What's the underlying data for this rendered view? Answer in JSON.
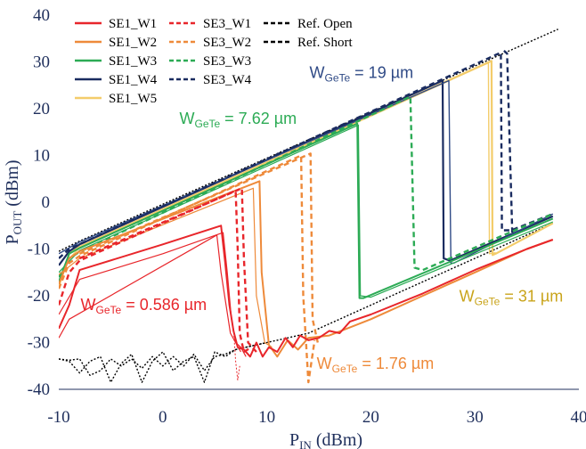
{
  "chart_data": {
    "type": "line",
    "xlabel": {
      "main": "P",
      "sub": "IN",
      "unit": " (dBm)"
    },
    "ylabel": {
      "main": "P",
      "sub": "OUT",
      "unit": " (dBm)"
    },
    "xlim": [
      -10,
      40
    ],
    "ylim": [
      -40,
      40
    ],
    "xticks": [
      -10,
      0,
      10,
      20,
      30,
      40
    ],
    "yticks": [
      -40,
      -30,
      -20,
      -10,
      0,
      10,
      20,
      30,
      40
    ],
    "grid": false,
    "legend_position": "top-left",
    "colors": {
      "W1": "#e8262b",
      "W2": "#ee8a3a",
      "W3": "#2cab55",
      "W4": "#1a2c60",
      "W5": "#f3cc6a",
      "ref": "#000000",
      "axis": "#1f2f5c"
    },
    "legend": [
      {
        "label": "SE1_W1",
        "color": "#e8262b",
        "dash": false
      },
      {
        "label": "SE1_W2",
        "color": "#ee8a3a",
        "dash": false
      },
      {
        "label": "SE1_W3",
        "color": "#2cab55",
        "dash": false
      },
      {
        "label": "SE1_W4",
        "color": "#1a2c60",
        "dash": false
      },
      {
        "label": "SE1_W5",
        "color": "#f3cc6a",
        "dash": false
      },
      {
        "label": "SE3_W1",
        "color": "#e8262b",
        "dash": true
      },
      {
        "label": "SE3_W2",
        "color": "#ee8a3a",
        "dash": true
      },
      {
        "label": "SE3_W3",
        "color": "#2cab55",
        "dash": true
      },
      {
        "label": "SE3_W4",
        "color": "#1a2c60",
        "dash": true
      },
      {
        "label": "Ref. Open",
        "color": "#000000",
        "dash": true
      },
      {
        "label": "Ref. Short",
        "color": "#000000",
        "dash": true
      }
    ],
    "annotations": [
      {
        "main": "W",
        "sub": "GeTe",
        "text": " = 0.586 µm",
        "color": "#e8262b",
        "at": [
          -7.9,
          -23
        ]
      },
      {
        "main": "W",
        "sub": "GeTe",
        "text": " = 1.76 µm",
        "color": "#ee8a3a",
        "at": [
          14.8,
          -35.6
        ]
      },
      {
        "main": "W",
        "sub": "GeTe",
        "text": " = 7.62 µm",
        "color": "#2cab55",
        "at": [
          1.6,
          16.8
        ]
      },
      {
        "main": "W",
        "sub": "GeTe",
        "text": " = 19 µm",
        "color": "#2f4a86",
        "at": [
          14.1,
          26.6
        ]
      },
      {
        "main": "W",
        "sub": "GeTe",
        "text": " = 31 µm",
        "color": "#c9a41b",
        "at": [
          28.5,
          -21.2
        ]
      }
    ],
    "series": [
      {
        "name": "Ref. Open",
        "color": "#000000",
        "dash": "2,2",
        "width": 1.4,
        "x": [
          -10,
          -9,
          -8,
          -7,
          -6,
          -5,
          -4,
          -3,
          -2,
          -1,
          0,
          1,
          2,
          3,
          4,
          5,
          6,
          7,
          8,
          9,
          10,
          11,
          12,
          13,
          14,
          15,
          16,
          17,
          18,
          19,
          20,
          22,
          25,
          28,
          31,
          34,
          37.5
        ],
        "y": [
          -33.5,
          -34,
          -36.5,
          -34,
          -33,
          -38.5,
          -34.5,
          -32.5,
          -38.5,
          -34,
          -32,
          -36,
          -34,
          -33,
          -38.5,
          -32,
          -33,
          -31.5,
          -31,
          -30.5,
          -30,
          -29.5,
          -29,
          -28.5,
          -28,
          -27,
          -26,
          -25,
          -24,
          -23,
          -22,
          -20,
          -17,
          -14,
          -11,
          -8,
          -4.5
        ]
      },
      {
        "name": "Ref. Short",
        "color": "#000000",
        "dash": "2,2",
        "width": 1.4,
        "x": [
          -10,
          -9,
          -8,
          -7,
          -6,
          -5,
          -4,
          -3,
          -2,
          -1,
          0,
          1,
          2,
          3,
          4,
          5,
          6,
          7,
          8,
          9,
          10
        ],
        "y": [
          -33.5,
          -33.8,
          -33.5,
          -37,
          -36,
          -33.5,
          -35,
          -33.5,
          -35.5,
          -33,
          -35,
          -33,
          -35,
          -32.5,
          -36,
          -33,
          -32.5,
          -31.5,
          -31,
          -30.5,
          -30
        ]
      },
      {
        "name": "Ref. Open upper",
        "color": "#000000",
        "dash": "2,2",
        "width": 1.4,
        "x": [
          -10,
          -8,
          38
        ],
        "y": [
          -10.5,
          -8.3,
          37
        ]
      },
      {
        "name": "SE1_W5",
        "color": "#f3cc6a",
        "dash": "",
        "width": 2.2,
        "x": [
          -10,
          -9,
          -8,
          31.6,
          31.7,
          32,
          37.5
        ],
        "y": [
          -18,
          -11,
          -9.5,
          30.2,
          -11.3,
          -11,
          -4.5
        ]
      },
      {
        "name": "SE1_W5 b",
        "color": "#f3cc6a",
        "dash": "",
        "width": 1.4,
        "x": [
          -10,
          -9,
          -8,
          31.3,
          31.4,
          32
        ],
        "y": [
          -17,
          -12,
          -9.8,
          29.8,
          -11,
          -10.8
        ]
      },
      {
        "name": "SE1_W4",
        "color": "#1a2c60",
        "dash": "",
        "width": 2.2,
        "x": [
          -10,
          -9,
          -8,
          26.9,
          27.0,
          27.6,
          37.5
        ],
        "y": [
          -13.5,
          -10.5,
          -9,
          26,
          -12,
          -12.5,
          -3
        ]
      },
      {
        "name": "SE1_W4 b",
        "color": "#2f4a86",
        "dash": "",
        "width": 1.4,
        "x": [
          -10,
          -8,
          27.5,
          27.7,
          28,
          37.5
        ],
        "y": [
          -11,
          -8.5,
          26,
          -13,
          -13,
          -2.5
        ]
      },
      {
        "name": "SE3_W4",
        "color": "#1a2c60",
        "dash": "6,4",
        "width": 2.4,
        "x": [
          -10,
          -9,
          32.5,
          32.6,
          33.5,
          37.5
        ],
        "y": [
          -12,
          -10,
          32,
          -6,
          -6,
          -2.5
        ]
      },
      {
        "name": "SE3_W4 b",
        "color": "#1a2c60",
        "dash": "6,4",
        "width": 2.4,
        "x": [
          32.8,
          33.1,
          33.6
        ],
        "y": [
          32.4,
          31.8,
          -6.5
        ]
      },
      {
        "name": "SE1_W3",
        "color": "#2cab55",
        "dash": "",
        "width": 2.0,
        "x": [
          -10,
          -9,
          -8,
          18.7,
          18.9,
          19.3,
          37.5
        ],
        "y": [
          -17,
          -11,
          -9.8,
          16.8,
          -20.5,
          -20.5,
          -3.5
        ]
      },
      {
        "name": "SE1_W3 b",
        "color": "#2cab55",
        "dash": "",
        "width": 1.2,
        "x": [
          -10,
          -8,
          18.8,
          19.0,
          20,
          37.5
        ],
        "y": [
          -15,
          -10.3,
          16.5,
          -20,
          -20.3,
          -4.2
        ]
      },
      {
        "name": "SE3_W3",
        "color": "#2cab55",
        "dash": "6,4",
        "width": 2.4,
        "x": [
          -10,
          -9,
          -8,
          23.8,
          24.2,
          25,
          37.5
        ],
        "y": [
          -16,
          -12,
          -10.6,
          22.6,
          -14,
          -14.5,
          -2.5
        ]
      },
      {
        "name": "SE1_W2",
        "color": "#ee8a3a",
        "dash": "",
        "width": 2.0,
        "x": [
          -10,
          -9,
          -8,
          9.3,
          9.5,
          10.2,
          11,
          12,
          13,
          14,
          16,
          20,
          25,
          30,
          35,
          37.5
        ],
        "y": [
          -17.5,
          -12,
          -10.5,
          4.5,
          -15,
          -30.5,
          -33,
          -29.5,
          -31.5,
          -29,
          -28.5,
          -25,
          -20,
          -15,
          -10,
          -8
        ]
      },
      {
        "name": "SE1_W2 b",
        "color": "#ee8a3a",
        "dash": "",
        "width": 1.2,
        "x": [
          -10,
          -8,
          8.7,
          9.0,
          9.8,
          10.5
        ],
        "y": [
          -15.5,
          -12,
          3,
          -20,
          -30,
          -31
        ]
      },
      {
        "name": "SE3_W2",
        "color": "#ee8a3a",
        "dash": "6,4",
        "width": 2.4,
        "x": [
          -10,
          -9,
          -8,
          13.3,
          13.5,
          14.0,
          14.6
        ],
        "y": [
          -18.5,
          -13,
          -11.5,
          10,
          -20,
          -38.5,
          -29.5
        ]
      },
      {
        "name": "SE3_W2 b",
        "color": "#ee8a3a",
        "dash": "6,4",
        "width": 2.4,
        "x": [
          -8,
          14.2,
          14.4,
          14.9
        ],
        "y": [
          -11,
          10.4,
          -25,
          -30
        ]
      },
      {
        "name": "SE1_W1",
        "color": "#e8262b",
        "dash": "",
        "width": 2.0,
        "x": [
          -10,
          -9,
          -8,
          0,
          5.6,
          6.0,
          6.4,
          6.8,
          7.2,
          7.8,
          8.4,
          9,
          9.6,
          10.2,
          11,
          11.8,
          12.5,
          13.2,
          14,
          15,
          16,
          17,
          18,
          20,
          25,
          30,
          35,
          37.5
        ],
        "y": [
          -27,
          -22,
          -14.5,
          -9,
          -5,
          -13,
          -22,
          -27.5,
          -31,
          -31.5,
          -33,
          -30,
          -33,
          -31,
          -32,
          -29,
          -31,
          -28.5,
          -29.5,
          -29,
          -27.5,
          -28,
          -25.5,
          -24,
          -19.5,
          -14.5,
          -10,
          -8
        ]
      },
      {
        "name": "SE1_W1 b",
        "color": "#e8262b",
        "dash": "",
        "width": 1.2,
        "x": [
          -10,
          -8,
          0,
          5.8,
          6.2,
          6.6,
          7.0,
          7.5,
          8.0
        ],
        "y": [
          -24,
          -16.5,
          -11,
          -6.5,
          -15,
          -25,
          -30,
          -31,
          -33
        ]
      },
      {
        "name": "SE1_W1 c",
        "color": "#e8262b",
        "dash": "",
        "width": 1.2,
        "x": [
          -10,
          -9,
          5.2,
          5.6,
          6.5,
          7.5
        ],
        "y": [
          -29,
          -25,
          -7,
          -15,
          -28,
          -32
        ]
      },
      {
        "name": "SE3_W1",
        "color": "#e8262b",
        "dash": "6,4",
        "width": 2.4,
        "x": [
          -10,
          -9,
          -8,
          7.0,
          7.2,
          7.4,
          7.8,
          8.5
        ],
        "y": [
          -22,
          -15,
          -12.5,
          2.5,
          -10,
          -28,
          -32,
          -31
        ]
      },
      {
        "name": "SE3_W1 b",
        "color": "#e8262b",
        "dash": "6,4",
        "width": 2.4,
        "x": [
          -8,
          7.6,
          7.8,
          8.2,
          9
        ],
        "y": [
          -12,
          3,
          -12,
          -30,
          -32
        ]
      },
      {
        "name": "SE3_W1 c",
        "color": "#e8262b",
        "dash": "2,2",
        "width": 1.0,
        "x": [
          6.8,
          7.0,
          7.2,
          7.4
        ],
        "y": [
          -27,
          -34,
          -38,
          -35
        ]
      }
    ]
  }
}
